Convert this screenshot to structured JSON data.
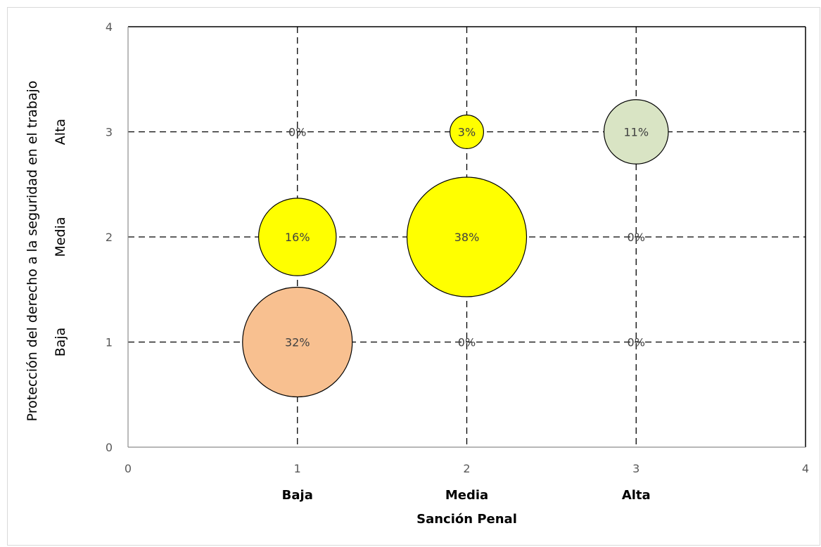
{
  "chart_data": {
    "type": "bubble",
    "title": "",
    "xlabel": "Sanción Penal",
    "ylabel": "Protección del derecho a la seguridad en el trabajo",
    "xlim": [
      0,
      4
    ],
    "ylim": [
      0,
      4
    ],
    "x_ticks": [
      "0",
      "1",
      "2",
      "3",
      "4"
    ],
    "y_ticks": [
      "0",
      "1",
      "2",
      "3",
      "4"
    ],
    "x_categories": [
      "Baja",
      "Media",
      "Alta"
    ],
    "y_categories": [
      "Baja",
      "Media",
      "Alta"
    ],
    "grid": "dashed",
    "points": [
      {
        "x": 1,
        "y": 1,
        "value": 32,
        "label": "32%",
        "color": "#f8c090"
      },
      {
        "x": 2,
        "y": 1,
        "value": 0,
        "label": "0%",
        "color": "#ffff00"
      },
      {
        "x": 3,
        "y": 1,
        "value": 0,
        "label": "0%",
        "color": "#ffff00"
      },
      {
        "x": 1,
        "y": 2,
        "value": 16,
        "label": "16%",
        "color": "#ffff00"
      },
      {
        "x": 2,
        "y": 2,
        "value": 38,
        "label": "38%",
        "color": "#ffff00"
      },
      {
        "x": 3,
        "y": 2,
        "value": 0,
        "label": "0%",
        "color": "#ffff00"
      },
      {
        "x": 1,
        "y": 3,
        "value": 0,
        "label": "0%",
        "color": "#ffff00"
      },
      {
        "x": 2,
        "y": 3,
        "value": 3,
        "label": "3%",
        "color": "#ffff00"
      },
      {
        "x": 3,
        "y": 3,
        "value": 11,
        "label": "11%",
        "color": "#d9e4c4"
      }
    ]
  }
}
